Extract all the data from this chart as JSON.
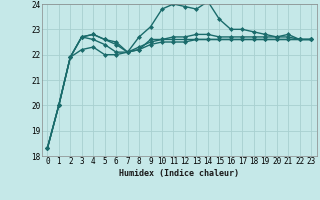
{
  "title": "",
  "xlabel": "Humidex (Indice chaleur)",
  "ylabel": "",
  "xlim": [
    -0.5,
    23.5
  ],
  "ylim": [
    18,
    24
  ],
  "yticks": [
    18,
    19,
    20,
    21,
    22,
    23,
    24
  ],
  "xticks": [
    0,
    1,
    2,
    3,
    4,
    5,
    6,
    7,
    8,
    9,
    10,
    11,
    12,
    13,
    14,
    15,
    16,
    17,
    18,
    19,
    20,
    21,
    22,
    23
  ],
  "background_color": "#c5e8e8",
  "grid_color": "#a8d0d0",
  "line_color": "#1a6b6b",
  "line_width": 1.0,
  "marker": "D",
  "marker_size": 2.0,
  "lines": [
    [
      18.3,
      20.0,
      21.9,
      22.7,
      22.8,
      22.6,
      22.5,
      22.1,
      22.2,
      22.6,
      22.6,
      22.6,
      22.6,
      22.6,
      22.6,
      22.6,
      22.6,
      22.6,
      22.6,
      22.6,
      22.6,
      22.6,
      22.6,
      22.6
    ],
    [
      18.3,
      20.0,
      21.9,
      22.7,
      22.8,
      22.6,
      22.4,
      22.1,
      22.7,
      23.1,
      23.8,
      24.0,
      23.9,
      23.8,
      24.1,
      23.4,
      23.0,
      23.0,
      22.9,
      22.8,
      22.7,
      22.8,
      22.6,
      22.6
    ],
    [
      18.3,
      20.0,
      21.9,
      22.7,
      22.6,
      22.4,
      22.1,
      22.1,
      22.3,
      22.5,
      22.6,
      22.7,
      22.7,
      22.8,
      22.8,
      22.7,
      22.7,
      22.7,
      22.7,
      22.7,
      22.7,
      22.7,
      22.6,
      22.6
    ],
    [
      18.3,
      20.0,
      21.9,
      22.2,
      22.3,
      22.0,
      22.0,
      22.1,
      22.2,
      22.4,
      22.5,
      22.5,
      22.5,
      22.6,
      22.6,
      22.6,
      22.6,
      22.6,
      22.6,
      22.6,
      22.6,
      22.6,
      22.6,
      22.6
    ]
  ],
  "font_family": "monospace",
  "xlabel_fontsize": 6.0,
  "tick_fontsize": 5.5
}
